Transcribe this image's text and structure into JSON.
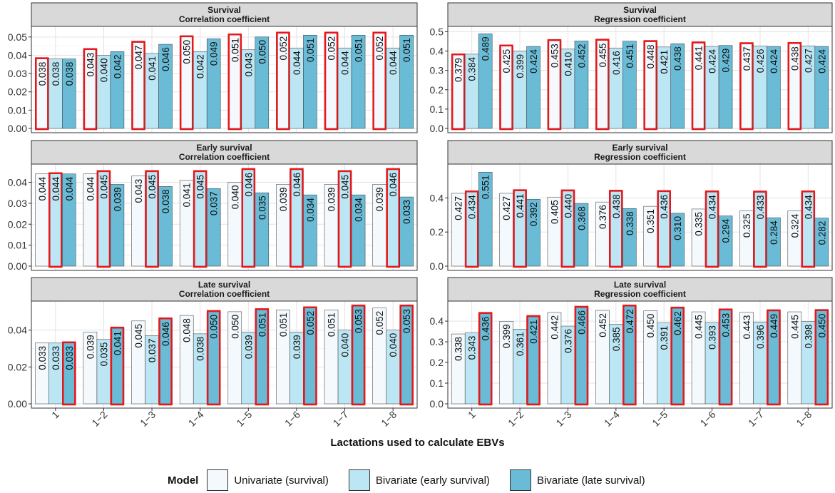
{
  "figure": {
    "x_axis_title": "Lactations used to calculate EBVs",
    "legend": {
      "title": "Model",
      "items": [
        {
          "label": "Univariate (survival)",
          "color": "#f4f9fd"
        },
        {
          "label": "Bivariate (early survival)",
          "color": "#bde6f4"
        },
        {
          "label": "Bivariate (late survival)",
          "color": "#69bbd6"
        }
      ]
    },
    "highlight_color": "#e8171b"
  },
  "chart_data": [
    {
      "type": "bar",
      "title": "Survival",
      "subtitle": "Correlation coefficient",
      "categories": [
        "1",
        "1−2",
        "1−3",
        "1−4",
        "1−5",
        "1−6",
        "1−7",
        "1−8"
      ],
      "series": [
        {
          "name": "Univariate (survival)",
          "values": [
            0.038,
            0.043,
            0.047,
            0.05,
            0.051,
            0.052,
            0.052,
            0.052
          ],
          "labels": [
            "0.038",
            "0.043",
            "0.047",
            "0.050",
            "0.051",
            "0.052",
            "0.052",
            "0.052"
          ]
        },
        {
          "name": "Bivariate (early survival)",
          "values": [
            0.038,
            0.04,
            0.041,
            0.042,
            0.043,
            0.044,
            0.044,
            0.044
          ],
          "labels": [
            "0.038",
            "0.040",
            "0.041",
            "0.042",
            "0.043",
            "0.044",
            "0.044",
            "0.044"
          ]
        },
        {
          "name": "Bivariate (late survival)",
          "values": [
            0.038,
            0.042,
            0.046,
            0.049,
            0.05,
            0.051,
            0.051,
            0.051
          ],
          "labels": [
            "0.038",
            "0.042",
            "0.046",
            "0.049",
            "0.050",
            "0.051",
            "0.051",
            "0.051"
          ]
        }
      ],
      "highlight_series": 0,
      "ylim": [
        0,
        0.055
      ],
      "yticks": [
        0.0,
        0.01,
        0.02,
        0.03,
        0.04,
        0.05
      ],
      "ytick_labels": [
        "0.00",
        "0.01",
        "0.02",
        "0.03",
        "0.04",
        "0.05"
      ],
      "grid": true
    },
    {
      "type": "bar",
      "title": "Survival",
      "subtitle": "Regression coefficient",
      "categories": [
        "1",
        "1−2",
        "1−3",
        "1−4",
        "1−5",
        "1−6",
        "1−7",
        "1−8"
      ],
      "series": [
        {
          "name": "Univariate (survival)",
          "values": [
            0.379,
            0.425,
            0.453,
            0.455,
            0.448,
            0.441,
            0.437,
            0.438
          ],
          "labels": [
            "0.379",
            "0.425",
            "0.453",
            "0.455",
            "0.448",
            "0.441",
            "0.437",
            "0.438"
          ]
        },
        {
          "name": "Bivariate (early survival)",
          "values": [
            0.384,
            0.399,
            0.41,
            0.416,
            0.421,
            0.424,
            0.426,
            0.427
          ],
          "labels": [
            "0.384",
            "0.399",
            "0.410",
            "0.416",
            "0.421",
            "0.424",
            "0.426",
            "0.427"
          ]
        },
        {
          "name": "Bivariate (late survival)",
          "values": [
            0.489,
            0.424,
            0.452,
            0.451,
            0.438,
            0.429,
            0.424,
            0.424
          ],
          "labels": [
            "0.489",
            "0.424",
            "0.452",
            "0.451",
            "0.438",
            "0.429",
            "0.424",
            "0.424"
          ]
        }
      ],
      "highlight_series": 0,
      "ylim": [
        0,
        0.52
      ],
      "yticks": [
        0.0,
        0.1,
        0.2,
        0.3,
        0.4,
        0.5
      ],
      "ytick_labels": [
        "0.0",
        "0.1",
        "0.2",
        "0.3",
        "0.4",
        "0.5"
      ],
      "grid": true
    },
    {
      "type": "bar",
      "title": "Early survival",
      "subtitle": "Correlation coefficient",
      "categories": [
        "1",
        "1−2",
        "1−3",
        "1−4",
        "1−5",
        "1−6",
        "1−7",
        "1−8"
      ],
      "series": [
        {
          "name": "Univariate (survival)",
          "values": [
            0.044,
            0.044,
            0.043,
            0.041,
            0.04,
            0.039,
            0.039,
            0.039
          ],
          "labels": [
            "0.044",
            "0.044",
            "0.043",
            "0.041",
            "0.040",
            "0.039",
            "0.039",
            "0.039"
          ]
        },
        {
          "name": "Bivariate (early survival)",
          "values": [
            0.044,
            0.045,
            0.045,
            0.045,
            0.046,
            0.046,
            0.045,
            0.046
          ],
          "labels": [
            "0.044",
            "0.045",
            "0.045",
            "0.045",
            "0.046",
            "0.046",
            "0.045",
            "0.046"
          ]
        },
        {
          "name": "Bivariate (late survival)",
          "values": [
            0.044,
            0.039,
            0.038,
            0.037,
            0.035,
            0.034,
            0.034,
            0.033
          ],
          "labels": [
            "0.044",
            "0.039",
            "0.038",
            "0.037",
            "0.035",
            "0.034",
            "0.034",
            "0.033"
          ]
        }
      ],
      "highlight_series": 1,
      "ylim": [
        0,
        0.048
      ],
      "yticks": [
        0.0,
        0.01,
        0.02,
        0.03,
        0.04
      ],
      "ytick_labels": [
        "0.00",
        "0.01",
        "0.02",
        "0.03",
        "0.04"
      ],
      "grid": true
    },
    {
      "type": "bar",
      "title": "Early survival",
      "subtitle": "Regression coefficient",
      "categories": [
        "1",
        "1−2",
        "1−3",
        "1−4",
        "1−5",
        "1−6",
        "1−7",
        "1−8"
      ],
      "series": [
        {
          "name": "Univariate (survival)",
          "values": [
            0.427,
            0.427,
            0.405,
            0.376,
            0.351,
            0.335,
            0.325,
            0.324
          ],
          "labels": [
            "0.427",
            "0.427",
            "0.405",
            "0.376",
            "0.351",
            "0.335",
            "0.325",
            "0.324"
          ]
        },
        {
          "name": "Bivariate (early survival)",
          "values": [
            0.434,
            0.441,
            0.44,
            0.438,
            0.436,
            0.434,
            0.433,
            0.434
          ],
          "labels": [
            "0.434",
            "0.441",
            "0.440",
            "0.438",
            "0.436",
            "0.434",
            "0.433",
            "0.434"
          ]
        },
        {
          "name": "Bivariate (late survival)",
          "values": [
            0.551,
            0.392,
            0.368,
            0.338,
            0.31,
            0.294,
            0.284,
            0.282
          ],
          "labels": [
            "0.551",
            "0.392",
            "0.368",
            "0.338",
            "0.310",
            "0.294",
            "0.284",
            "0.282"
          ]
        }
      ],
      "highlight_series": 1,
      "ylim": [
        0,
        0.59
      ],
      "yticks": [
        0.0,
        0.2,
        0.4
      ],
      "ytick_labels": [
        "0.0",
        "0.2",
        "0.4"
      ],
      "grid": true
    },
    {
      "type": "bar",
      "title": "Late survival",
      "subtitle": "Correlation coefficient",
      "categories": [
        "1",
        "1−2",
        "1−3",
        "1−4",
        "1−5",
        "1−6",
        "1−7",
        "1−8"
      ],
      "series": [
        {
          "name": "Univariate (survival)",
          "values": [
            0.033,
            0.039,
            0.045,
            0.048,
            0.05,
            0.051,
            0.051,
            0.052
          ],
          "labels": [
            "0.033",
            "0.039",
            "0.045",
            "0.048",
            "0.050",
            "0.051",
            "0.051",
            "0.052"
          ]
        },
        {
          "name": "Bivariate (early survival)",
          "values": [
            0.033,
            0.035,
            0.037,
            0.038,
            0.039,
            0.039,
            0.04,
            0.04
          ],
          "labels": [
            "0.033",
            "0.035",
            "0.037",
            "0.038",
            "0.039",
            "0.039",
            "0.040",
            "0.040"
          ]
        },
        {
          "name": "Bivariate (late survival)",
          "values": [
            0.033,
            0.041,
            0.046,
            0.05,
            0.051,
            0.052,
            0.053,
            0.053
          ],
          "labels": [
            "0.033",
            "0.041",
            "0.046",
            "0.050",
            "0.051",
            "0.052",
            "0.053",
            "0.053"
          ]
        }
      ],
      "highlight_series": 2,
      "ylim": [
        0,
        0.055
      ],
      "yticks": [
        0.0,
        0.02,
        0.04
      ],
      "ytick_labels": [
        "0.00",
        "0.02",
        "0.04"
      ],
      "grid": true
    },
    {
      "type": "bar",
      "title": "Late survival",
      "subtitle": "Regression coefficient",
      "categories": [
        "1",
        "1−2",
        "1−3",
        "1−4",
        "1−5",
        "1−6",
        "1−7",
        "1−8"
      ],
      "series": [
        {
          "name": "Univariate (survival)",
          "values": [
            0.338,
            0.399,
            0.442,
            0.452,
            0.45,
            0.445,
            0.443,
            0.445
          ],
          "labels": [
            "0.338",
            "0.399",
            "0.442",
            "0.452",
            "0.450",
            "0.445",
            "0.443",
            "0.445"
          ]
        },
        {
          "name": "Bivariate (early survival)",
          "values": [
            0.343,
            0.361,
            0.376,
            0.385,
            0.391,
            0.393,
            0.396,
            0.398
          ],
          "labels": [
            "0.343",
            "0.361",
            "0.376",
            "0.385",
            "0.391",
            "0.393",
            "0.396",
            "0.398"
          ]
        },
        {
          "name": "Bivariate (late survival)",
          "values": [
            0.436,
            0.421,
            0.466,
            0.472,
            0.462,
            0.453,
            0.449,
            0.45
          ],
          "labels": [
            "0.436",
            "0.421",
            "0.466",
            "0.472",
            "0.462",
            "0.453",
            "0.449",
            "0.450"
          ]
        }
      ],
      "highlight_series": 2,
      "ylim": [
        0,
        0.49
      ],
      "yticks": [
        0.0,
        0.1,
        0.2,
        0.3,
        0.4
      ],
      "ytick_labels": [
        "0.0",
        "0.1",
        "0.2",
        "0.3",
        "0.4"
      ],
      "grid": true
    }
  ]
}
